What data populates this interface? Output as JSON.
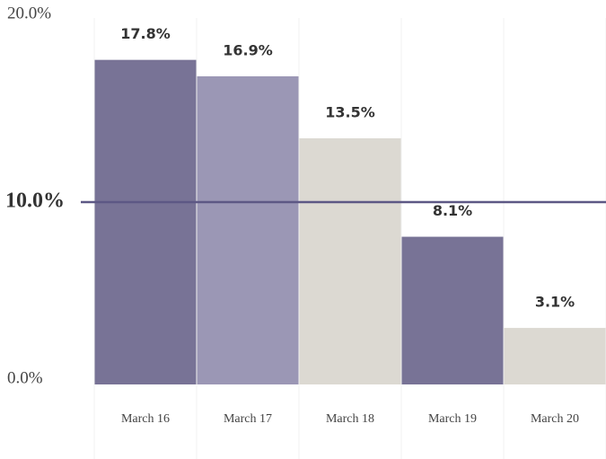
{
  "chart_data": {
    "type": "bar",
    "categories": [
      "March 16",
      "March 17",
      "March 18",
      "March 19",
      "March 20"
    ],
    "values": [
      17.8,
      16.9,
      13.5,
      8.1,
      3.1
    ],
    "value_labels": [
      "17.8%",
      "16.9%",
      "13.5%",
      "8.1%",
      "3.1%"
    ],
    "colors": [
      "#787396",
      "#9b97b5",
      "#dcd9d2",
      "#787396",
      "#dcd9d2"
    ],
    "ylim": [
      0,
      20
    ],
    "yticks": [
      {
        "value": 0,
        "label": "0.0%"
      },
      {
        "value": 20,
        "label": "20.0%"
      }
    ],
    "reference_line": {
      "value": 10,
      "label": "10.0%",
      "color": "#5d5885"
    }
  }
}
